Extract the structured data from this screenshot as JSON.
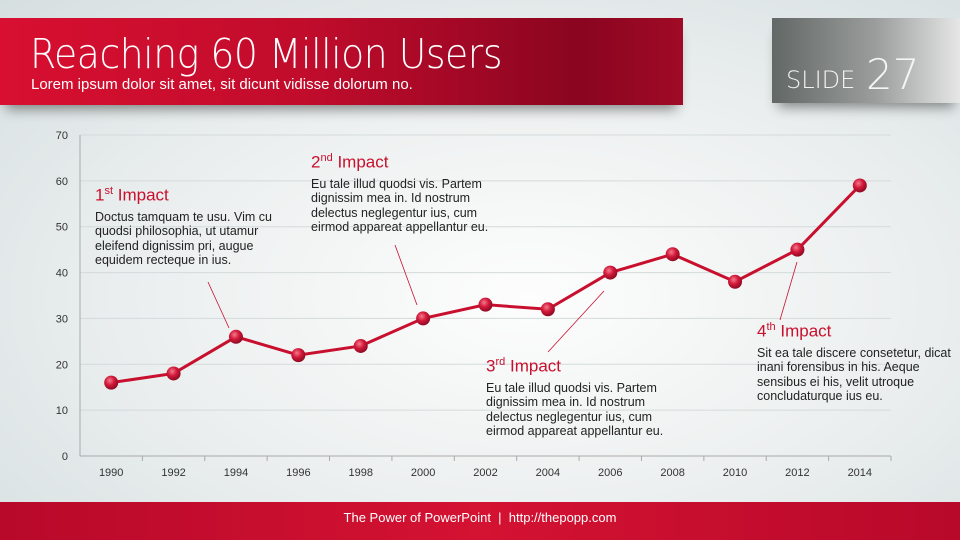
{
  "header": {
    "title": "Reaching 60 Million Users",
    "subtitle": "Lorem ipsum dolor sit amet, sit dicunt vidisse dolorum no.",
    "slide_label": "SLIDE",
    "slide_number": "27"
  },
  "annotations": [
    {
      "num": "1",
      "sup": "st",
      "title": "Impact",
      "text": "Doctus tamquam te usu. Vim cu quodsi philosophia, ut utamur eleifend dignissim pri, augue equidem recteque in ius."
    },
    {
      "num": "2",
      "sup": "nd",
      "title": "Impact",
      "text": "Eu tale illud quodsi vis. Partem dignissim mea in. Id nostrum delectus neglegentur ius, cum eirmod appareat appellantur eu."
    },
    {
      "num": "3",
      "sup": "rd",
      "title": "Impact",
      "text": "Eu tale illud quodsi vis. Partem dignissim mea in. Id nostrum delectus neglegentur ius, cum eirmod appareat appellantur eu."
    },
    {
      "num": "4",
      "sup": "th",
      "title": "Impact",
      "text": "Sit ea tale discere consetetur, dicat inani forensibus in his. Aeque sensibus ei his, velit utroque concludaturque ius eu."
    }
  ],
  "footer": {
    "text": "The Power of PowerPoint  |  http://thepopp.com"
  },
  "colors": {
    "accent": "#c8102e"
  },
  "chart_data": {
    "type": "line",
    "categories": [
      "1990",
      "1992",
      "1994",
      "1996",
      "1998",
      "2000",
      "2002",
      "2004",
      "2006",
      "2008",
      "2010",
      "2012",
      "2014"
    ],
    "values": [
      16,
      18,
      26,
      22,
      24,
      30,
      33,
      32,
      40,
      44,
      38,
      45,
      59
    ],
    "yticks": [
      0,
      10,
      20,
      30,
      40,
      50,
      60,
      70
    ],
    "ylim": [
      0,
      70
    ],
    "grid": true,
    "title": "",
    "xlabel": "",
    "ylabel": ""
  }
}
